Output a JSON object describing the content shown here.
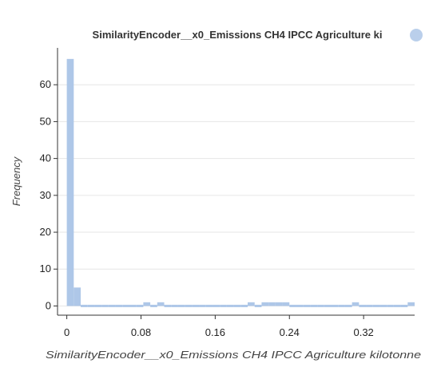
{
  "chart_data": {
    "type": "bar",
    "title": "SimilarityEncoder__x0_Emissions CH4 IPCC Agriculture ki",
    "xlabel": "SimilarityEncoder__x0_Emissions CH4 IPCC Agriculture kilotonne",
    "ylabel": "Frequency",
    "xlim": [
      -0.01,
      0.375
    ],
    "ylim": [
      -2.5,
      70
    ],
    "x_ticks": [
      "0",
      "0.08",
      "0.16",
      "0.24",
      "0.32"
    ],
    "x_tick_values": [
      0,
      0.08,
      0.16,
      0.24,
      0.32
    ],
    "y_ticks": [
      "0",
      "10",
      "20",
      "30",
      "40",
      "50",
      "60"
    ],
    "y_tick_values": [
      0,
      10,
      20,
      30,
      40,
      50,
      60
    ],
    "grid": true,
    "bin_width": 0.0075,
    "bin_start": 0,
    "values": [
      67,
      5,
      0,
      0,
      0,
      0,
      0,
      0,
      0,
      0,
      0,
      1,
      0,
      1,
      0,
      0,
      0,
      0,
      0,
      0,
      0,
      0,
      0,
      0,
      0,
      0,
      1,
      0,
      1,
      1,
      1,
      1,
      0,
      0,
      0,
      0,
      0,
      0,
      0,
      0,
      0,
      1,
      0,
      0,
      0,
      0,
      0,
      0,
      0,
      1
    ],
    "bar_color": "#aec7e8"
  },
  "badge_color": "#aec7e8"
}
